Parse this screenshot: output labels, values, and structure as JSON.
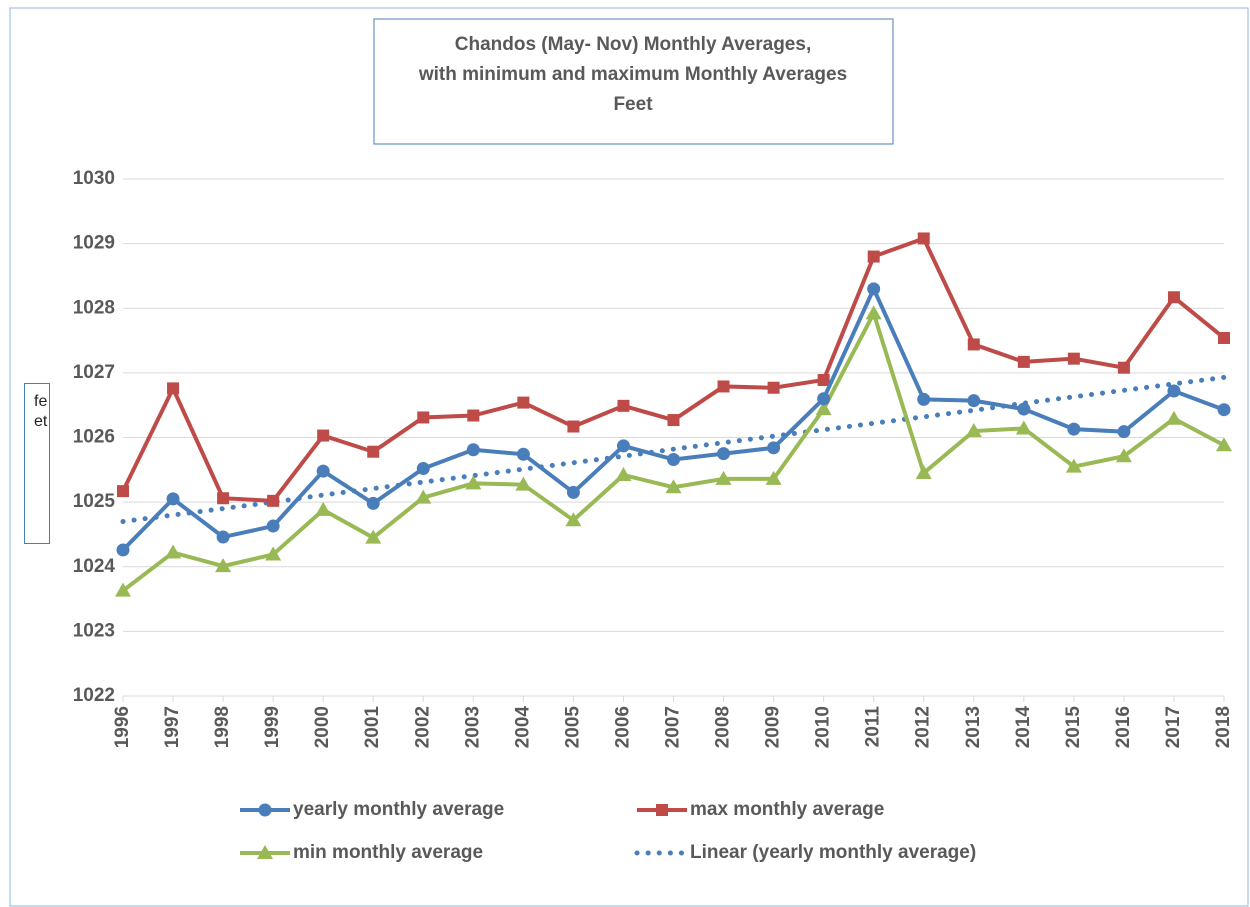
{
  "chart_data": {
    "type": "line",
    "title": [
      "Chandos (May- Nov) Monthly Averages,",
      "with minimum and maximum Monthly Averages",
      "Feet"
    ],
    "y_label": "feet",
    "categories": [
      "1996",
      "1997",
      "1998",
      "1999",
      "2000",
      "2001",
      "2002",
      "2003",
      "2004",
      "2005",
      "2006",
      "2007",
      "2008",
      "2009",
      "2010",
      "2011",
      "2012",
      "2013",
      "2014",
      "2015",
      "2016",
      "2017",
      "2018"
    ],
    "series": [
      {
        "name": "yearly monthly average",
        "color": "#4a7ebb",
        "marker": "circle",
        "line_style": "solid",
        "values": [
          1024.26,
          1025.05,
          1024.46,
          1024.63,
          1025.48,
          1024.98,
          1025.52,
          1025.81,
          1025.74,
          1025.15,
          1025.87,
          1025.66,
          1025.75,
          1025.84,
          1026.6,
          1028.3,
          1026.59,
          1026.57,
          1026.44,
          1026.13,
          1026.09,
          1026.72,
          1026.43
        ]
      },
      {
        "name": "max monthly average",
        "color": "#be4b48",
        "marker": "square",
        "line_style": "solid",
        "values": [
          1025.17,
          1026.76,
          1025.06,
          1025.02,
          1026.03,
          1025.78,
          1026.31,
          1026.34,
          1026.54,
          1026.17,
          1026.49,
          1026.27,
          1026.79,
          1026.77,
          1026.89,
          1028.8,
          1029.08,
          1027.44,
          1027.17,
          1027.22,
          1027.08,
          1028.17,
          1027.54
        ]
      },
      {
        "name": "min monthly average",
        "color": "#98b954",
        "marker": "triangle",
        "line_style": "solid",
        "values": [
          1023.63,
          1024.22,
          1024.01,
          1024.19,
          1024.88,
          1024.45,
          1025.07,
          1025.29,
          1025.27,
          1024.72,
          1025.42,
          1025.23,
          1025.36,
          1025.36,
          1026.44,
          1027.92,
          1025.45,
          1026.1,
          1026.14,
          1025.55,
          1025.71,
          1026.29,
          1025.88
        ]
      },
      {
        "name": "Linear (yearly monthly average)",
        "color": "#4a7ebb",
        "marker": null,
        "line_style": "dotted",
        "values": [
          1024.7,
          1024.8,
          1024.9,
          1025.0,
          1025.11,
          1025.21,
          1025.31,
          1025.41,
          1025.51,
          1025.61,
          1025.71,
          1025.82,
          1025.92,
          1026.02,
          1026.12,
          1026.22,
          1026.32,
          1026.42,
          1026.53,
          1026.63,
          1026.73,
          1026.83,
          1026.93
        ]
      }
    ],
    "ylim": [
      1022,
      1030
    ],
    "yticks": [
      1022,
      1023,
      1024,
      1025,
      1026,
      1027,
      1028,
      1029,
      1030
    ],
    "grid": true,
    "legend": "bottom"
  }
}
